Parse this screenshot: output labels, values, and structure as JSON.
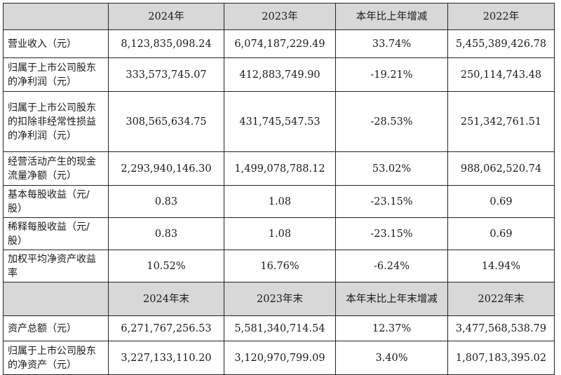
{
  "header1": [
    "2024年",
    "2023年",
    "本年比上年增减",
    "2022年"
  ],
  "rows1": [
    {
      "label": "营业收入（元）",
      "values": [
        "8,123,835,098.24",
        "6,074,187,229.49",
        "33.74%",
        "5,455,389,426.78"
      ]
    },
    {
      "label": "归属于上市公司股东的净利润（元）",
      "values": [
        "333,573,745.07",
        "412,883,749.90",
        "-19.21%",
        "250,114,743.48"
      ]
    },
    {
      "label": "归属于上市公司股东的扣除非经常性损益的净利润（元）",
      "values": [
        "308,565,634.75",
        "431,745,547.53",
        "-28.53%",
        "251,342,761.51"
      ]
    },
    {
      "label": "经营活动产生的现金流量净额（元）",
      "values": [
        "2,293,940,146.30",
        "1,499,078,788.12",
        "53.02%",
        "988,062,520.74"
      ]
    },
    {
      "label": "基本每股收益（元/股）",
      "values": [
        "0.83",
        "1.08",
        "-23.15%",
        "0.69"
      ]
    },
    {
      "label": "稀释每股收益（元/股）",
      "values": [
        "0.83",
        "1.08",
        "-23.15%",
        "0.69"
      ]
    },
    {
      "label": "加权平均净资产收益率",
      "values": [
        "10.52%",
        "16.76%",
        "-6.24%",
        "14.94%"
      ]
    }
  ],
  "header2": [
    "2024年末",
    "2023年末",
    "本年末比上年末增减",
    "2022年末"
  ],
  "rows2": [
    {
      "label": "资产总额（元）",
      "values": [
        "6,271,767,256.53",
        "5,581,340,714.54",
        "12.37%",
        "3,477,568,538.79"
      ]
    },
    {
      "label": "归属于上市公司股东的净资产（元）",
      "values": [
        "3,227,133,110.20",
        "3,120,970,799.09",
        "3.40%",
        "1,807,183,395.02"
      ]
    }
  ]
}
